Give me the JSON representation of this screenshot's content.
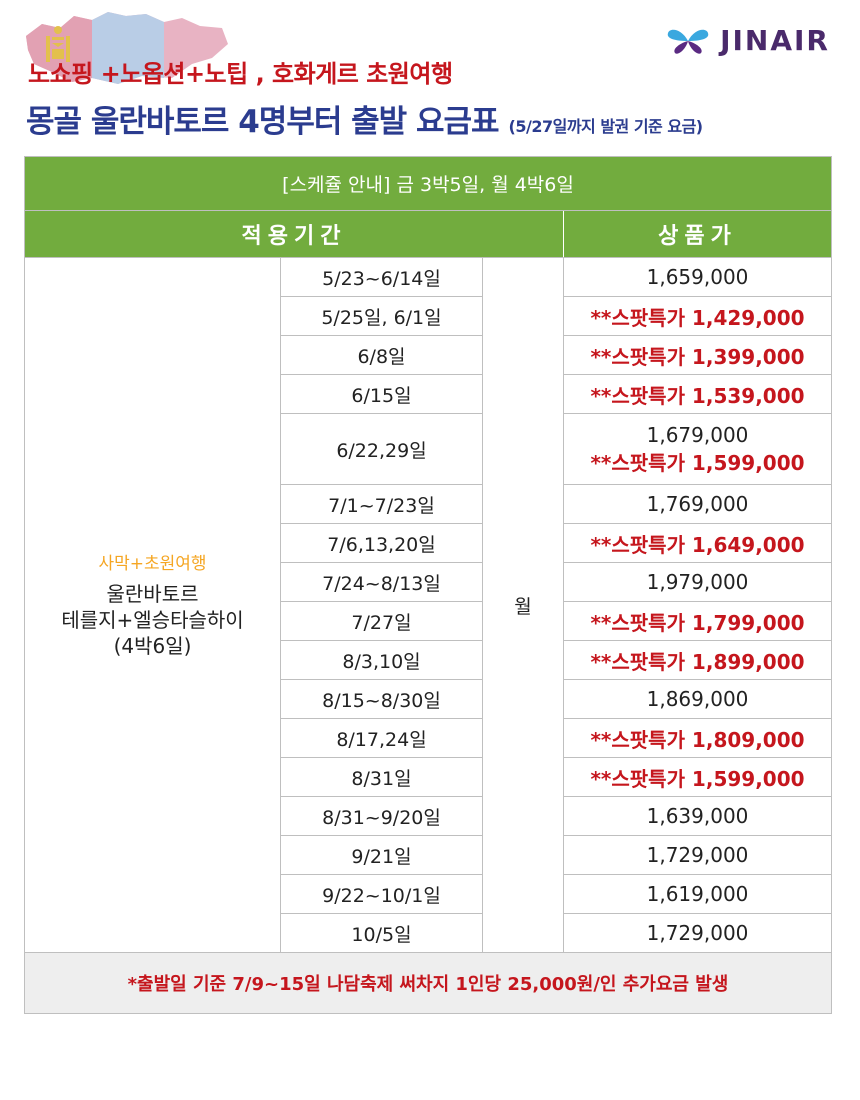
{
  "brand": {
    "logo_text": "JINAIR"
  },
  "header": {
    "line1": "노쇼핑 +노옵션+노팁 ,  호화게르 초원여행",
    "title": "몽골 울란바토르 4명부터 출발 요금표",
    "title_note": "(5/27일까지 발권 기준 요금)"
  },
  "table": {
    "schedule": "[스케쥴 안내] 금 3박5일, 월 4박6일",
    "col_period": "적용기간",
    "col_price": "상품가",
    "product": {
      "tag": "사막+초원여행",
      "name_lines": [
        "울란바토르",
        "테를지+엘승타슬하이",
        "(4박6일)"
      ]
    },
    "day": "월",
    "rows": [
      {
        "date": "5/23~6/14일",
        "prices": [
          "1,659,000"
        ]
      },
      {
        "date": "5/25일, 6/1일",
        "prices": [
          "**스팟특가 1,429,000"
        ]
      },
      {
        "date": "6/8일",
        "prices": [
          "**스팟특가 1,399,000"
        ]
      },
      {
        "date": "6/15일",
        "prices": [
          "**스팟특가 1,539,000"
        ]
      },
      {
        "date": "6/22,29일",
        "prices": [
          "1,679,000",
          "**스팟특가 1,599,000"
        ]
      },
      {
        "date": "7/1~7/23일",
        "prices": [
          "1,769,000"
        ]
      },
      {
        "date": "7/6,13,20일",
        "prices": [
          "**스팟특가 1,649,000"
        ]
      },
      {
        "date": "7/24~8/13일",
        "prices": [
          "1,979,000"
        ]
      },
      {
        "date": "7/27일",
        "prices": [
          "**스팟특가 1,799,000"
        ]
      },
      {
        "date": "8/3,10일",
        "prices": [
          "**스팟특가 1,899,000"
        ]
      },
      {
        "date": "8/15~8/30일",
        "prices": [
          "1,869,000"
        ]
      },
      {
        "date": "8/17,24일",
        "prices": [
          "**스팟특가 1,809,000"
        ]
      },
      {
        "date": "8/31일",
        "prices": [
          "**스팟특가 1,599,000"
        ]
      },
      {
        "date": "8/31~9/20일",
        "prices": [
          "1,639,000"
        ]
      },
      {
        "date": "9/21일",
        "prices": [
          "1,729,000"
        ]
      },
      {
        "date": "9/22~10/1일",
        "prices": [
          "1,619,000"
        ]
      },
      {
        "date": "10/5일",
        "prices": [
          "1,729,000"
        ]
      }
    ],
    "footnote": "*출발일 기준 7/9~15일 나담축제 써차지 1인당 25,000원/인 추가요금 발생"
  },
  "colors": {
    "green": "#72ac3e",
    "red": "#c5161d",
    "navy": "#2b3c8f",
    "orange": "#f5a623"
  }
}
